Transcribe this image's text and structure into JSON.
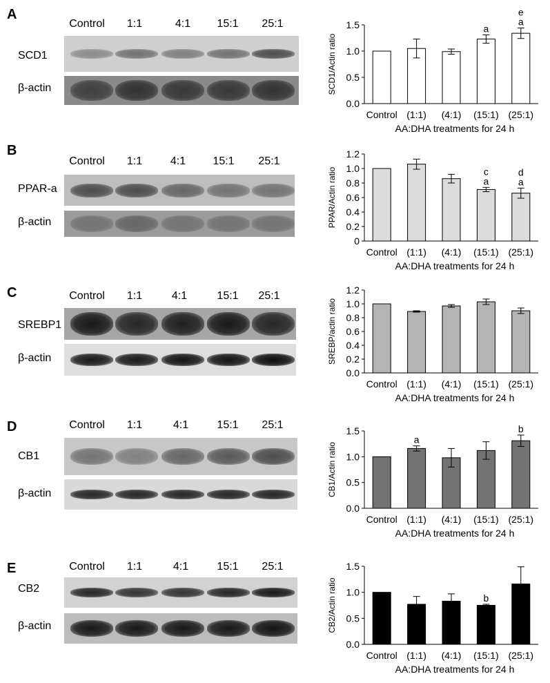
{
  "lanes": [
    "Control",
    "1:1",
    "4:1",
    "15:1",
    "25:1"
  ],
  "actin_label": "β-actin",
  "panels": [
    {
      "letter": "A",
      "protein": "SCD1",
      "fill_color": "#ffffff",
      "chart_data": {
        "type": "bar",
        "categories": [
          "Control",
          "(1:1)",
          "(4:1)",
          "(15:1)",
          "(25:1)"
        ],
        "values": [
          1.0,
          1.05,
          0.99,
          1.23,
          1.34
        ],
        "errors": [
          0,
          0.18,
          0.05,
          0.08,
          0.1
        ],
        "annotations": [
          "",
          "",
          "",
          "a",
          "e\na"
        ],
        "ylabel": "SCD1/Actin ratio",
        "xlabel": "AA:DHA treatments for 24 h",
        "ylim": [
          0,
          1.5
        ],
        "yticks": [
          "0.0",
          "0.5",
          "1.0",
          "1.5"
        ],
        "grid": false
      }
    },
    {
      "letter": "B",
      "protein": "PPAR-a",
      "fill_color": "#dcdcdc",
      "chart_data": {
        "type": "bar",
        "categories": [
          "Control",
          "(1:1)",
          "(4:1)",
          "(15:1)",
          "(25:1)"
        ],
        "values": [
          1.0,
          1.06,
          0.86,
          0.71,
          0.66
        ],
        "errors": [
          0,
          0.07,
          0.06,
          0.03,
          0.07
        ],
        "annotations": [
          "",
          "",
          "",
          "c\na",
          "d\na"
        ],
        "ylabel": "PPAR/Actin ratio",
        "xlabel": "AA:DHA treatments for 24 h",
        "ylim": [
          0,
          1.2
        ],
        "yticks": [
          "0",
          "0.2",
          "0.4",
          "0.6",
          "0.8",
          "1.0",
          "1.2"
        ],
        "grid": false
      }
    },
    {
      "letter": "C",
      "protein": "SREBP1",
      "fill_color": "#b4b4b4",
      "chart_data": {
        "type": "bar",
        "categories": [
          "Control",
          "(1:1)",
          "(4:1)",
          "(15:1)",
          "(25:1)"
        ],
        "values": [
          1.0,
          0.89,
          0.97,
          1.03,
          0.9
        ],
        "errors": [
          0,
          0.01,
          0.02,
          0.04,
          0.04
        ],
        "annotations": [
          "",
          "",
          "",
          "",
          ""
        ],
        "ylabel": "SREBP/actin ratio",
        "xlabel": "AA:DHA treatments for 24 h",
        "ylim": [
          0,
          1.2
        ],
        "yticks": [
          "0.0",
          "0.2",
          "0.4",
          "0.6",
          "0.8",
          "1.0",
          "1.2"
        ],
        "grid": false
      }
    },
    {
      "letter": "D",
      "protein": "CB1",
      "fill_color": "#737373",
      "chart_data": {
        "type": "bar",
        "categories": [
          "Control",
          "(1:1)",
          "(4:1)",
          "(15:1)",
          "(25:1)"
        ],
        "values": [
          1.0,
          1.16,
          0.98,
          1.12,
          1.31
        ],
        "errors": [
          0,
          0.05,
          0.18,
          0.17,
          0.11
        ],
        "annotations": [
          "",
          "a",
          "",
          "",
          "b"
        ],
        "ylabel": "CB1/Actin ratio",
        "xlabel": "AA:DHA treatments for 24 h",
        "ylim": [
          0,
          1.5
        ],
        "yticks": [
          "0.0",
          "0.5",
          "1.0",
          "1.5"
        ],
        "grid": false
      }
    },
    {
      "letter": "E",
      "protein": "CB2",
      "fill_color": "#000000",
      "chart_data": {
        "type": "bar",
        "categories": [
          "Control",
          "(1:1)",
          "(4:1)",
          "(15:1)",
          "(25:1)"
        ],
        "values": [
          1.0,
          0.77,
          0.83,
          0.75,
          1.16
        ],
        "errors": [
          0,
          0.15,
          0.14,
          0.02,
          0.33
        ],
        "annotations": [
          "",
          "",
          "",
          "b",
          ""
        ],
        "ylabel": "CB2/Actin ratio",
        "xlabel": "AA:DHA treatments for 24 h",
        "ylim": [
          0,
          1.5
        ],
        "yticks": [
          "0.0",
          "0.5",
          "1.0",
          "1.5"
        ],
        "grid": false
      }
    }
  ]
}
